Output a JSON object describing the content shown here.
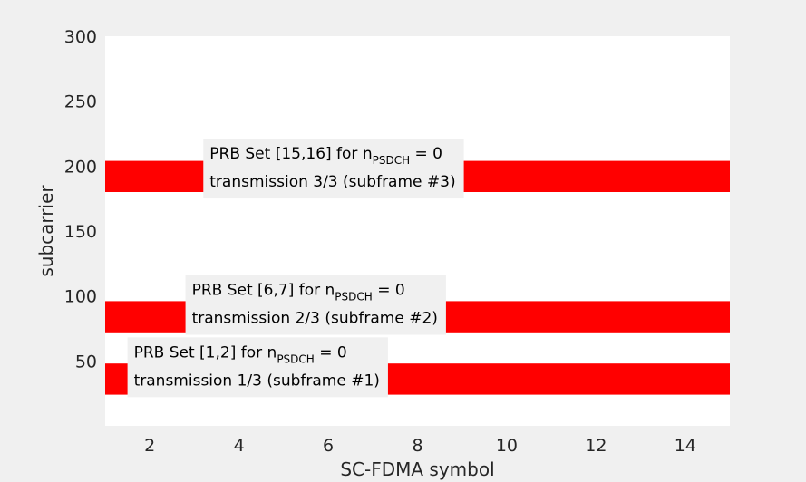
{
  "chart_data": {
    "type": "bar",
    "orientation": "horizontal-bands",
    "title": "",
    "xlabel": "SC-FDMA symbol",
    "ylabel": "subcarrier",
    "xlim": [
      1,
      15
    ],
    "ylim": [
      0,
      300
    ],
    "xticks": [
      2,
      4,
      6,
      8,
      10,
      12,
      14
    ],
    "yticks": [
      50,
      100,
      150,
      200,
      250,
      300
    ],
    "grid": false,
    "series": [
      {
        "x_start": 1,
        "x_end": 15,
        "y_start": 24,
        "y_end": 48,
        "color": "#ff0000"
      },
      {
        "x_start": 1,
        "x_end": 15,
        "y_start": 72,
        "y_end": 96,
        "color": "#ff0000"
      },
      {
        "x_start": 1,
        "x_end": 15,
        "y_start": 180,
        "y_end": 204,
        "color": "#ff0000"
      }
    ],
    "annotations": [
      {
        "line1_prefix": "PRB Set [1,2] for n",
        "line1_sub": "PSDCH",
        "line1_suffix": " = 0",
        "line2": "transmission 1/3 (subframe #1)",
        "x": 1.5,
        "y": 50
      },
      {
        "line1_prefix": "PRB Set [6,7] for n",
        "line1_sub": "PSDCH",
        "line1_suffix": " = 0",
        "line2": "transmission 2/3 (subframe #2)",
        "x": 2.8,
        "y": 98
      },
      {
        "line1_prefix": "PRB Set [15,16] for n",
        "line1_sub": "PSDCH",
        "line1_suffix": " = 0",
        "line2": "transmission 3/3 (subframe #3)",
        "x": 3.2,
        "y": 203
      }
    ],
    "colors": {
      "plot_background": "#ffffff",
      "figure_background": "#f0f0f0",
      "band": "#ff0000",
      "annotation_background": "#f0f0f0"
    }
  }
}
